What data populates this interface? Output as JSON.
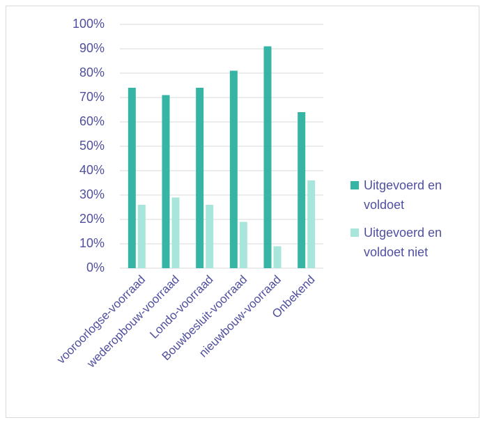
{
  "chart_data": {
    "type": "bar",
    "categories": [
      "vooroorlogse-voorraad",
      "wederopbouw-voorraad",
      "Londo-voorraad",
      "Bouwbesluit-voorraad",
      "nieuwbouw-voorraad",
      "Onbekend"
    ],
    "series": [
      {
        "name": "Uitgevoerd en voldoet",
        "color": "#36b5a5",
        "values": [
          74,
          71,
          74,
          81,
          91,
          64
        ]
      },
      {
        "name": "Uitgevoerd en voldoet niet",
        "color": "#a8e6dc",
        "values": [
          26,
          29,
          26,
          19,
          9,
          36
        ]
      }
    ],
    "ylim": [
      0,
      100
    ],
    "yticks": [
      {
        "value": 0,
        "label": "0%"
      },
      {
        "value": 10,
        "label": "10%"
      },
      {
        "value": 20,
        "label": "20%"
      },
      {
        "value": 30,
        "label": "30%"
      },
      {
        "value": 40,
        "label": "40%"
      },
      {
        "value": 50,
        "label": "50%"
      },
      {
        "value": 60,
        "label": "60%"
      },
      {
        "value": 70,
        "label": "70%"
      },
      {
        "value": 80,
        "label": "80%"
      },
      {
        "value": 90,
        "label": "90%"
      },
      {
        "value": 100,
        "label": "100%"
      }
    ],
    "grid": true,
    "legend": "right"
  }
}
